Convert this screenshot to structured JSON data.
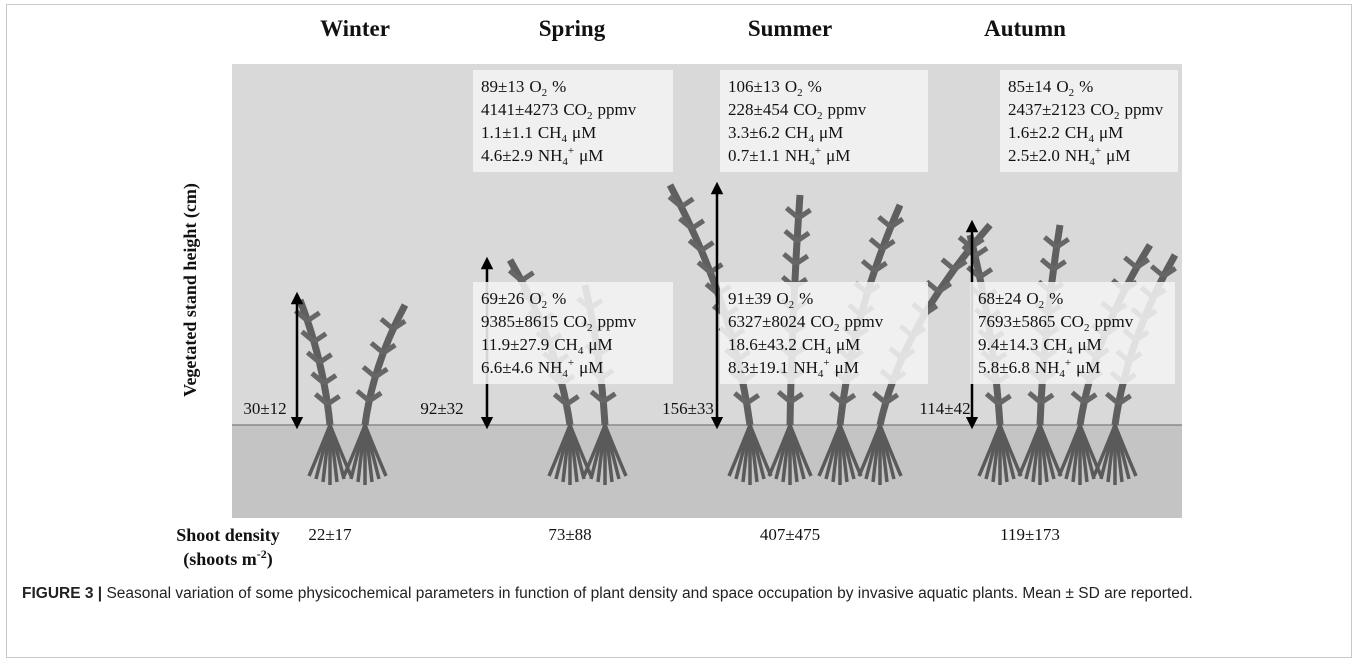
{
  "figure": {
    "axis_label": "Vegetated stand height (cm)",
    "density_label": {
      "line1": "Shoot density",
      "line2": [
        "(shoots m",
        "-2",
        ")"
      ]
    },
    "seasons": [
      {
        "name": "Winter",
        "height": "30±12",
        "density": "22±17"
      },
      {
        "name": "Spring",
        "height": "92±32",
        "density": "73±88",
        "surface": [
          {
            "value": "89±13",
            "species": "O",
            "sub": "2",
            "unit": "%"
          },
          {
            "value": "4141±4273",
            "species": "CO",
            "sub": "2",
            "unit": "ppmv"
          },
          {
            "value": "1.1±1.1",
            "species": "CH",
            "sub": "4",
            "unit": "μM"
          },
          {
            "value": "4.6±2.9",
            "species": "NH",
            "sub": "4",
            "sup": "+",
            "unit": "μM"
          }
        ],
        "bottom": [
          {
            "value": "69±26",
            "species": "O",
            "sub": "2",
            "unit": "%"
          },
          {
            "value": "9385±8615",
            "species": "CO",
            "sub": "2",
            "unit": "ppmv"
          },
          {
            "value": "11.9±27.9",
            "species": "CH",
            "sub": "4",
            "unit": "μM"
          },
          {
            "value": "6.6±4.6",
            "species": "NH",
            "sub": "4",
            "sup": "+",
            "unit": "μM"
          }
        ]
      },
      {
        "name": "Summer",
        "height": "156±33",
        "density": "407±475",
        "surface": [
          {
            "value": "106±13",
            "species": "O",
            "sub": "2",
            "unit": "%"
          },
          {
            "value": "228±454",
            "species": "CO",
            "sub": "2",
            "unit": "ppmv"
          },
          {
            "value": "3.3±6.2",
            "species": "CH",
            "sub": "4",
            "unit": "μM"
          },
          {
            "value": "0.7±1.1",
            "species": "NH",
            "sub": "4",
            "sup": "+",
            "unit": "μM"
          }
        ],
        "bottom": [
          {
            "value": "91±39",
            "species": "O",
            "sub": "2",
            "unit": "%"
          },
          {
            "value": "6327±8024",
            "species": "CO",
            "sub": "2",
            "unit": "ppmv"
          },
          {
            "value": "18.6±43.2",
            "species": "CH",
            "sub": "4",
            "unit": "μM"
          },
          {
            "value": "8.3±19.1",
            "species": "NH",
            "sub": "4",
            "sup": "+",
            "unit": "μM"
          }
        ]
      },
      {
        "name": "Autumn",
        "height": "114±42",
        "density": "119±173",
        "surface": [
          {
            "value": "85±14",
            "species": "O",
            "sub": "2",
            "unit": "%"
          },
          {
            "value": "2437±2123",
            "species": "CO",
            "sub": "2",
            "unit": "ppmv"
          },
          {
            "value": "1.6±2.2",
            "species": "CH",
            "sub": "4",
            "unit": "μM"
          },
          {
            "value": "2.5±2.0",
            "species": "NH",
            "sub": "4",
            "sup": "+",
            "unit": "μM"
          }
        ],
        "bottom": [
          {
            "value": "68±24",
            "species": "O",
            "sub": "2",
            "unit": "%"
          },
          {
            "value": "7693±5865",
            "species": "CO",
            "sub": "2",
            "unit": "ppmv"
          },
          {
            "value": "9.4±14.3",
            "species": "CH",
            "sub": "4",
            "unit": "μM"
          },
          {
            "value": "5.8±6.8",
            "species": "NH",
            "sub": "4",
            "sup": "+",
            "unit": "μM"
          }
        ]
      }
    ]
  },
  "caption": {
    "label": "FIGURE 3 |",
    "text": "Seasonal variation of some physicochemical parameters in function of plant density and space occupation by invasive aquatic plants. Mean ± SD are reported."
  }
}
